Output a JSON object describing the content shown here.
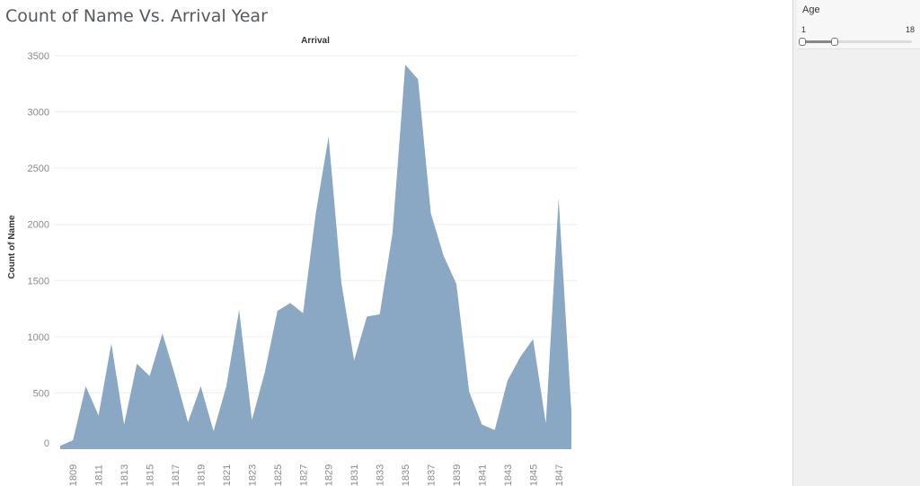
{
  "page": {
    "title": "Count of Name Vs. Arrival Year"
  },
  "filter": {
    "title": "Age",
    "min_label": "1",
    "max_label": "18",
    "range_min": 1,
    "range_max": 18,
    "selected_low": 1,
    "selected_high": 6
  },
  "colors": {
    "area": "#8aa8c4",
    "grid": "#eeeeee",
    "text": "#8a8a8a"
  },
  "chart_data": {
    "type": "area",
    "title": "Arrival",
    "ylabel": "Count of Name",
    "xlabel": "",
    "ylim": [
      0,
      3500
    ],
    "yticks": [
      0,
      500,
      1000,
      1500,
      2000,
      2500,
      3000,
      3500
    ],
    "x": [
      1808,
      1809,
      1810,
      1811,
      1812,
      1813,
      1814,
      1815,
      1816,
      1817,
      1818,
      1819,
      1820,
      1821,
      1822,
      1823,
      1824,
      1825,
      1826,
      1827,
      1828,
      1829,
      1830,
      1831,
      1832,
      1833,
      1834,
      1835,
      1836,
      1837,
      1838,
      1839,
      1840,
      1841,
      1842,
      1843,
      1844,
      1845,
      1846,
      1847,
      1848
    ],
    "xticks": [
      "1809",
      "1811",
      "1813",
      "1815",
      "1817",
      "1819",
      "1821",
      "1823",
      "1825",
      "1827",
      "1829",
      "1831",
      "1833",
      "1835",
      "1837",
      "1839",
      "1841",
      "1843",
      "1845",
      "1847"
    ],
    "values": [
      30,
      80,
      560,
      300,
      940,
      220,
      760,
      650,
      1030,
      650,
      240,
      560,
      160,
      560,
      1240,
      260,
      680,
      1230,
      1300,
      1210,
      2100,
      2780,
      1480,
      790,
      1180,
      1200,
      1920,
      3420,
      3290,
      2100,
      1720,
      1470,
      510,
      220,
      170,
      610,
      820,
      980,
      230,
      2230,
      330
    ],
    "grid": true
  }
}
